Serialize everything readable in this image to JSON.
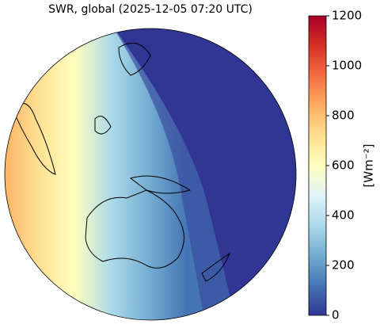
{
  "chart_data": {
    "type": "colorbar-map",
    "title": "SWR, global (2025-12-05 07:20 UTC)",
    "colorbar_label": "[Wm⁻²]",
    "clim": [
      0,
      1200
    ],
    "cticks": [
      0,
      200,
      400,
      600,
      800,
      1000,
      1200
    ],
    "colormap": [
      "#313695",
      "#4575b4",
      "#74add1",
      "#abd9e9",
      "#e0f3f8",
      "#ffffbf",
      "#fee090",
      "#fdae61",
      "#f46d43",
      "#d73027",
      "#a50026"
    ]
  }
}
